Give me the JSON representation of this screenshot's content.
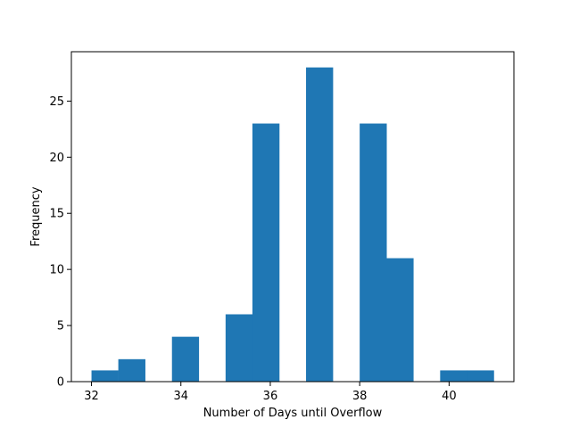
{
  "chart_data": {
    "type": "bar",
    "title": "",
    "xlabel": "Number of Days until Overflow",
    "ylabel": "Frequency",
    "bar_color": "#1f77b4",
    "bins": [
      {
        "x0": 32.0,
        "x1": 32.6,
        "count": 1
      },
      {
        "x0": 32.6,
        "x1": 33.2,
        "count": 2
      },
      {
        "x0": 33.2,
        "x1": 33.8,
        "count": 0
      },
      {
        "x0": 33.8,
        "x1": 34.4,
        "count": 4
      },
      {
        "x0": 34.4,
        "x1": 35.0,
        "count": 0
      },
      {
        "x0": 35.0,
        "x1": 35.6,
        "count": 6
      },
      {
        "x0": 35.6,
        "x1": 36.2,
        "count": 23
      },
      {
        "x0": 36.2,
        "x1": 36.8,
        "count": 0
      },
      {
        "x0": 36.8,
        "x1": 37.4,
        "count": 28
      },
      {
        "x0": 37.4,
        "x1": 38.0,
        "count": 0
      },
      {
        "x0": 38.0,
        "x1": 38.6,
        "count": 23
      },
      {
        "x0": 38.6,
        "x1": 39.2,
        "count": 11
      },
      {
        "x0": 39.2,
        "x1": 39.8,
        "count": 0
      },
      {
        "x0": 39.8,
        "x1": 40.4,
        "count": 1
      },
      {
        "x0": 40.4,
        "x1": 41.0,
        "count": 1
      }
    ],
    "xlim": [
      31.55,
      41.45
    ],
    "ylim": [
      0,
      29.4
    ],
    "xticks": [
      32,
      34,
      36,
      38,
      40
    ],
    "yticks": [
      0,
      5,
      10,
      15,
      20,
      25
    ],
    "grid": false,
    "legend": "none"
  }
}
